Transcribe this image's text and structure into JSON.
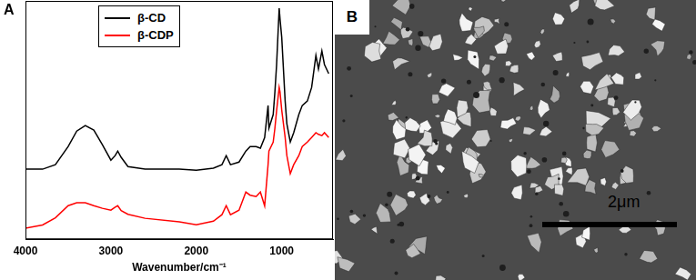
{
  "chart_data": {
    "type": "line",
    "annotations": [
      "A"
    ],
    "x_label": "Wavenumber/cm⁻¹",
    "x": [
      4000,
      3800,
      3650,
      3500,
      3400,
      3300,
      3200,
      3100,
      3000,
      2950,
      2920,
      2880,
      2800,
      2600,
      2200,
      2000,
      1800,
      1700,
      1650,
      1600,
      1500,
      1420,
      1370,
      1300,
      1250,
      1200,
      1160,
      1150,
      1100,
      1080,
      1060,
      1030,
      1020,
      1000,
      960,
      940,
      900,
      860,
      800,
      760,
      700,
      650,
      600,
      570,
      530,
      500,
      450
    ],
    "series": [
      {
        "name": "β-CD",
        "color": "#000000",
        "values": [
          29.4,
          29.4,
          31.3,
          38.9,
          45.4,
          47.7,
          45.8,
          39.7,
          33.2,
          35.1,
          37.0,
          34.4,
          30.5,
          29.4,
          29.4,
          29.0,
          29.8,
          31.3,
          35.1,
          31.3,
          32.4,
          37.0,
          38.9,
          38.9,
          38.2,
          42.7,
          56.1,
          46.6,
          52.3,
          61.8,
          73.3,
          96.9,
          92.4,
          84.7,
          58.0,
          48.5,
          40.8,
          44.7,
          52.3,
          56.1,
          58.0,
          63.7,
          77.1,
          71.4,
          79.0,
          73.3,
          69.5
        ]
      },
      {
        "name": "β-CDP",
        "color": "#ff0000",
        "values": [
          4.6,
          6.0,
          9.0,
          14.1,
          15.3,
          15.3,
          14.1,
          13.0,
          12.2,
          13.5,
          14.1,
          12.0,
          10.5,
          8.8,
          7.3,
          6.1,
          7.6,
          10.3,
          14.1,
          10.3,
          12.2,
          19.8,
          18.5,
          17.9,
          19.8,
          14.0,
          31.3,
          37.0,
          40.8,
          46.6,
          54.0,
          63.7,
          61.8,
          54.2,
          42.7,
          35.1,
          27.5,
          31.3,
          35.1,
          38.9,
          40.8,
          42.7,
          44.7,
          44.0,
          43.5,
          44.7,
          42.7
        ]
      }
    ],
    "xlim": [
      4000,
      400
    ],
    "xticks": [
      4000,
      3000,
      2000,
      1000
    ],
    "ylim": [
      0,
      100
    ],
    "tick_labels": "x",
    "grid": false,
    "legend": "upper left"
  },
  "image_panel": {
    "label": "B",
    "scale_bar_text": "2μm"
  }
}
